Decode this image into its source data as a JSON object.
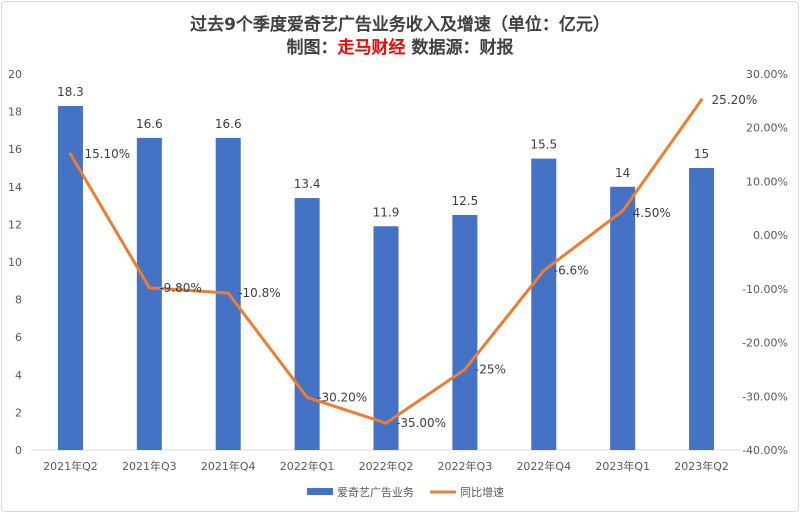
{
  "chart_data": {
    "type": "bar+line",
    "title": "过去9个季度爱奇艺广告业务收入及增速（单位：亿元）",
    "subtitle": {
      "prefix": "制图：",
      "source_name": "走马财经",
      "suffix": " 数据源：财报"
    },
    "categories": [
      "2021年Q2",
      "2021年Q3",
      "2021年Q4",
      "2022年Q1",
      "2022年Q2",
      "2022年Q3",
      "2022年Q4",
      "2023年Q1",
      "2023年Q2"
    ],
    "series": [
      {
        "name": "爱奇艺广告业务",
        "type": "bar",
        "axis": "left",
        "color": "#4472c4",
        "values": [
          18.3,
          16.6,
          16.6,
          13.4,
          11.9,
          12.5,
          15.5,
          14,
          15
        ],
        "labels": [
          "18.3",
          "16.6",
          "16.6",
          "13.4",
          "11.9",
          "12.5",
          "15.5",
          "14",
          "15"
        ]
      },
      {
        "name": "同比增速",
        "type": "line",
        "axis": "right",
        "color": "#ed7d31",
        "values": [
          15.1,
          -9.8,
          -10.8,
          -30.2,
          -35.0,
          -25,
          -6.6,
          4.5,
          25.2
        ],
        "labels": [
          "15.10%",
          "-9.80%",
          "-10.8%",
          "-30.20%",
          "-35.00%",
          "-25%",
          "-6.6%",
          "4.50%",
          "25.20%"
        ]
      }
    ],
    "y_left": {
      "range": [
        0,
        20
      ],
      "ticks": [
        "0",
        "2",
        "4",
        "6",
        "8",
        "10",
        "12",
        "14",
        "16",
        "18",
        "20"
      ]
    },
    "y_right": {
      "range": [
        -40,
        30
      ],
      "ticks": [
        "-40.00%",
        "-30.00%",
        "-20.00%",
        "-10.00%",
        "0.00%",
        "10.00%",
        "20.00%",
        "30.00%"
      ]
    },
    "grid": false,
    "legend": "bottom",
    "subtitle_highlight_color": "#ff0000"
  }
}
